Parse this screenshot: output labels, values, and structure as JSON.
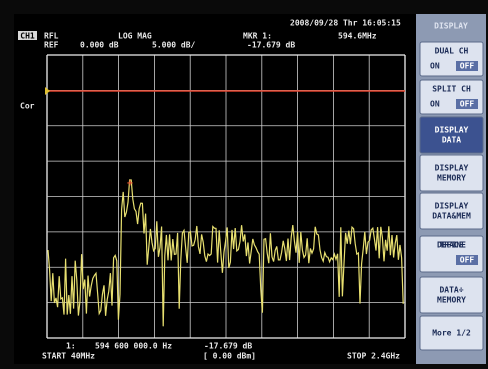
{
  "header": {
    "channel": "CH1",
    "format_type": "RFL",
    "format": "LOG MAG",
    "ref_label": "REF",
    "ref_value": "0.000 dB",
    "scale": "5.000 dB/",
    "marker_label": "MKR 1:",
    "marker_freq": "594.6MHz",
    "marker_value": "-17.679 dB",
    "datetime": "2008/09/28 Thr 16:05:15",
    "cor": "Cor"
  },
  "footer": {
    "marker_index": "1:",
    "marker_freq": "594 600 000.0 Hz",
    "marker_value": "-17.679 dB",
    "start": "START 40MHz",
    "power": "[ 0.00 dBm]",
    "stop": "STOP 2.4GHz"
  },
  "softkeys": {
    "title": "DISPLAY",
    "keys": [
      {
        "label": [
          "DUAL CH"
        ],
        "on": "ON",
        "off": "OFF"
      },
      {
        "label": [
          "SPLIT CH"
        ],
        "on": "ON",
        "off": "OFF"
      },
      {
        "label": [
          "DISPLAY",
          "DATA"
        ]
      },
      {
        "label": [
          "DISPLAY",
          "MEMORY"
        ]
      },
      {
        "label": [
          "DISPLAY",
          "DATA&MEM"
        ]
      },
      {
        "label": [
          "DEFINE",
          "TRACE"
        ],
        "off": "OFF"
      },
      {
        "label": [
          "DATA÷",
          "MEMORY"
        ]
      },
      {
        "label": [
          "More 1/2"
        ]
      }
    ]
  }
}
